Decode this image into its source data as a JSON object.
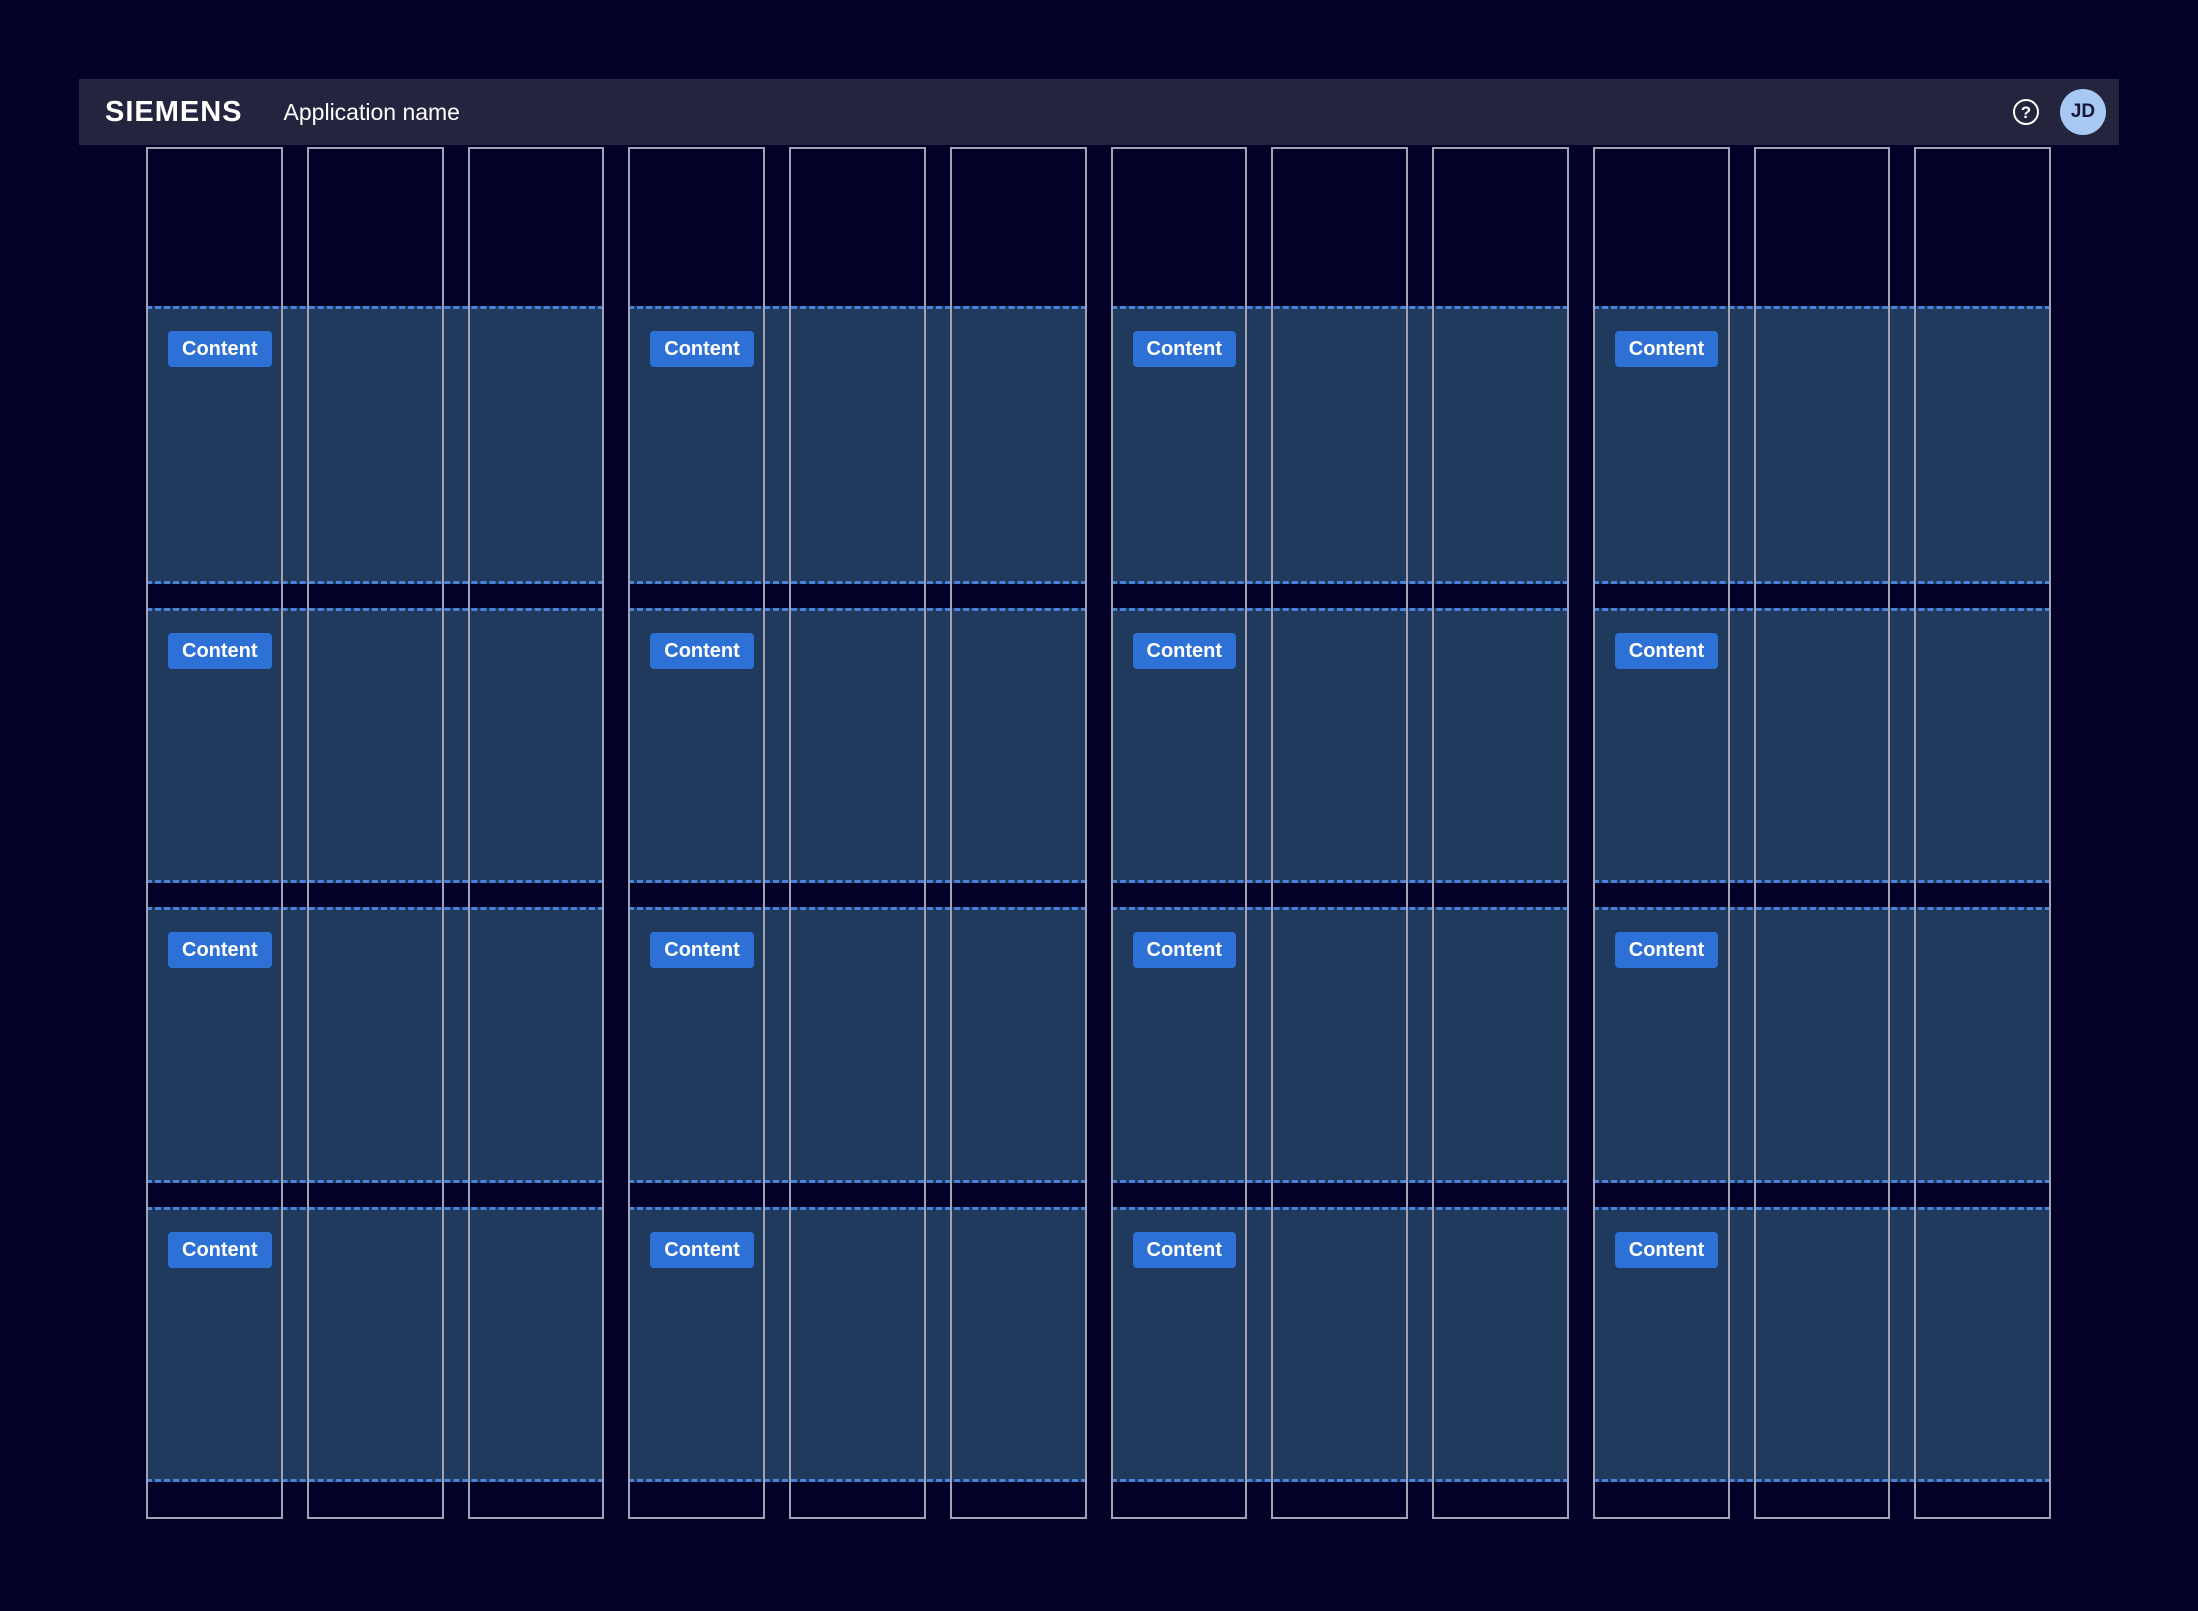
{
  "header": {
    "brand": "SIEMENS",
    "app_name": "Application name",
    "help_glyph": "?",
    "avatar_initials": "JD"
  },
  "grid": {
    "blocks": [
      {
        "label": "Content"
      },
      {
        "label": "Content"
      },
      {
        "label": "Content"
      },
      {
        "label": "Content"
      },
      {
        "label": "Content"
      },
      {
        "label": "Content"
      },
      {
        "label": "Content"
      },
      {
        "label": "Content"
      },
      {
        "label": "Content"
      },
      {
        "label": "Content"
      },
      {
        "label": "Content"
      },
      {
        "label": "Content"
      },
      {
        "label": "Content"
      },
      {
        "label": "Content"
      },
      {
        "label": "Content"
      },
      {
        "label": "Content"
      }
    ]
  },
  "colors": {
    "page_background": "#040128",
    "header_background": "#24243e",
    "band_fill": "#203a5e",
    "band_dashed_border": "#4a82da",
    "column_outline": "#a1a2b4",
    "primary_button": "#2d70d6",
    "avatar_background": "#a6c8f2",
    "avatar_text": "#16163a",
    "text": "#ffffff"
  }
}
